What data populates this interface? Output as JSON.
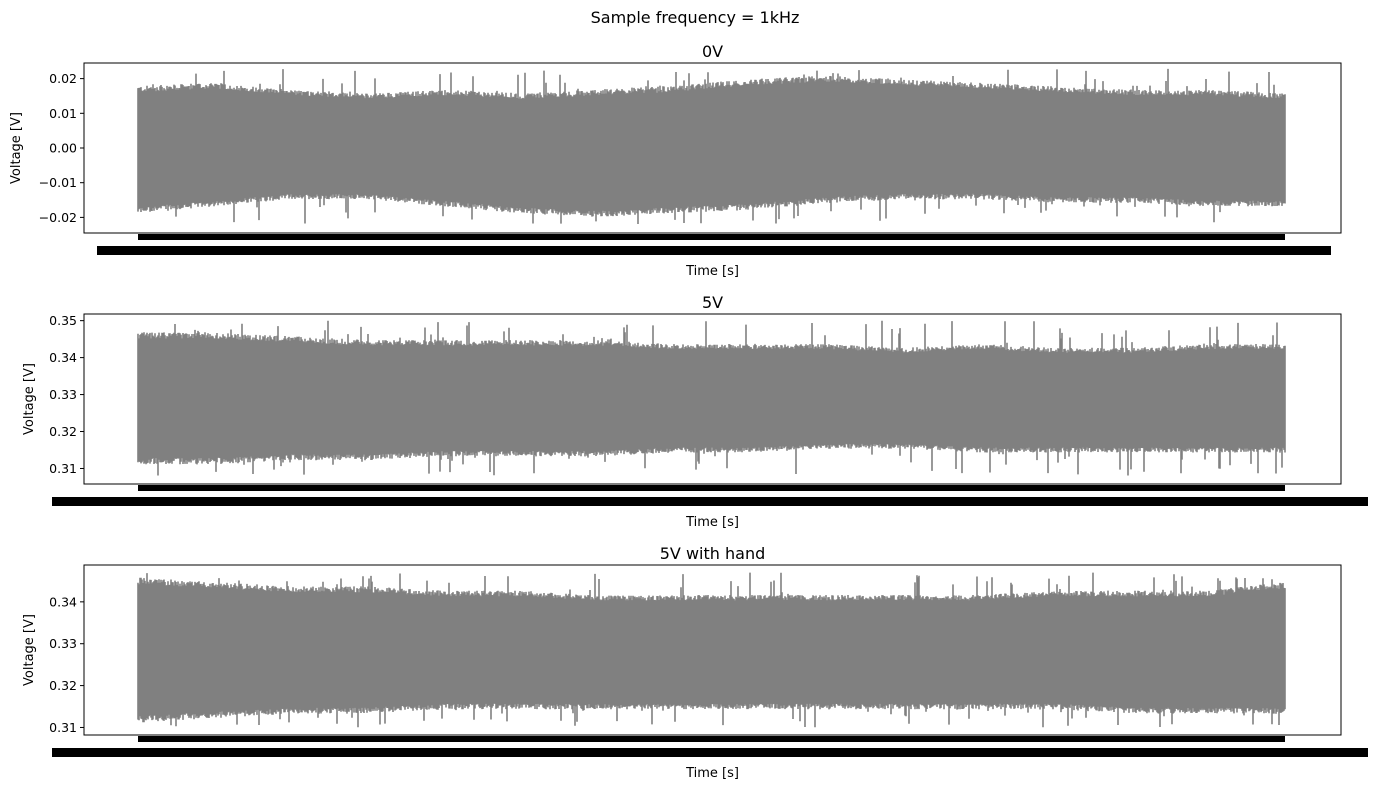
{
  "figure": {
    "suptitle": "Sample frequency = 1kHz"
  },
  "chart_data": [
    {
      "type": "line",
      "title": "0V",
      "xlabel": "Time [s]",
      "ylabel": "Voltage [V]",
      "ylim": [
        -0.0245,
        0.0245
      ],
      "yticks": [
        -0.02,
        -0.01,
        0.0,
        0.01,
        0.02
      ],
      "ytick_labels": [
        "−0.02",
        "−0.01",
        "0.00",
        "0.01",
        "0.02"
      ],
      "grid": false,
      "color": "#808080",
      "envelope": {
        "upper": [
          0.017,
          0.018,
          0.016,
          0.015,
          0.016,
          0.015,
          0.016,
          0.017,
          0.019,
          0.02,
          0.019,
          0.018,
          0.017,
          0.016,
          0.016,
          0.015
        ],
        "lower": [
          -0.018,
          -0.016,
          -0.014,
          -0.014,
          -0.016,
          -0.018,
          -0.019,
          -0.018,
          -0.017,
          -0.015,
          -0.014,
          -0.014,
          -0.015,
          -0.015,
          -0.016,
          -0.016
        ],
        "peak_max": 0.023,
        "peak_min": -0.022
      }
    },
    {
      "type": "line",
      "title": "5V",
      "xlabel": "Time [s]",
      "ylabel": "Voltage [V]",
      "ylim": [
        0.3058,
        0.3518
      ],
      "yticks": [
        0.31,
        0.32,
        0.33,
        0.34,
        0.35
      ],
      "ytick_labels": [
        "0.31",
        "0.32",
        "0.33",
        "0.34",
        "0.35"
      ],
      "grid": false,
      "color": "#808080",
      "envelope": {
        "upper": [
          0.346,
          0.346,
          0.345,
          0.344,
          0.344,
          0.344,
          0.344,
          0.343,
          0.343,
          0.343,
          0.342,
          0.343,
          0.342,
          0.342,
          0.343,
          0.343
        ],
        "lower": [
          0.312,
          0.312,
          0.313,
          0.313,
          0.314,
          0.314,
          0.314,
          0.315,
          0.315,
          0.316,
          0.316,
          0.315,
          0.315,
          0.315,
          0.315,
          0.315
        ],
        "peak_max": 0.35,
        "peak_min": 0.308
      }
    },
    {
      "type": "line",
      "title": "5V with hand",
      "xlabel": "Time [s]",
      "ylabel": "Voltage [V]",
      "ylim": [
        0.3082,
        0.3488
      ],
      "yticks": [
        0.31,
        0.32,
        0.33,
        0.34
      ],
      "ytick_labels": [
        "0.31",
        "0.32",
        "0.33",
        "0.34"
      ],
      "grid": false,
      "color": "#808080",
      "envelope": {
        "upper": [
          0.345,
          0.344,
          0.343,
          0.343,
          0.342,
          0.342,
          0.341,
          0.341,
          0.341,
          0.341,
          0.341,
          0.341,
          0.342,
          0.342,
          0.342,
          0.344
        ],
        "lower": [
          0.312,
          0.313,
          0.314,
          0.314,
          0.315,
          0.315,
          0.315,
          0.315,
          0.315,
          0.315,
          0.315,
          0.315,
          0.315,
          0.314,
          0.314,
          0.314
        ],
        "peak_max": 0.347,
        "peak_min": 0.31
      }
    }
  ]
}
